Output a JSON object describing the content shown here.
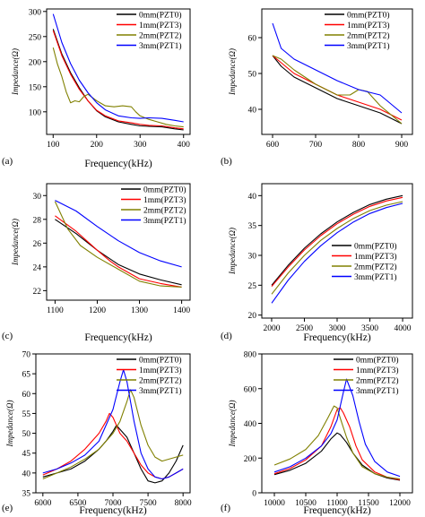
{
  "chart_data": [
    {
      "type": "line",
      "panel": "(a)",
      "xlabel": "Frequency(kHz)",
      "ylabel": "Impedance(Ω)",
      "xlim": [
        85,
        415
      ],
      "ylim": [
        55,
        305
      ],
      "xticks": [
        100,
        200,
        300,
        400
      ],
      "yticks": [
        50,
        100,
        150,
        200,
        250,
        300
      ],
      "series": [
        {
          "name": "0mm(PZT0)",
          "color": "#000000",
          "x": [
            100,
            120,
            140,
            160,
            180,
            200,
            220,
            250,
            280,
            300,
            320,
            350,
            380,
            400
          ],
          "y": [
            265,
            215,
            178,
            148,
            122,
            102,
            90,
            80,
            75,
            72,
            71,
            70,
            66,
            64
          ]
        },
        {
          "name": "1mm(PZT3)",
          "color": "#ff0000",
          "x": [
            100,
            120,
            140,
            160,
            180,
            200,
            220,
            250,
            280,
            300,
            320,
            350,
            380,
            400
          ],
          "y": [
            262,
            212,
            175,
            145,
            122,
            103,
            92,
            82,
            78,
            75,
            73,
            72,
            68,
            66
          ]
        },
        {
          "name": "2mm(PZT2)",
          "color": "#808000",
          "x": [
            100,
            110,
            120,
            130,
            140,
            150,
            160,
            170,
            180,
            200,
            220,
            240,
            260,
            280,
            290,
            300,
            320,
            340,
            360,
            380,
            400
          ],
          "y": [
            228,
            195,
            170,
            140,
            118,
            122,
            120,
            130,
            135,
            122,
            112,
            110,
            112,
            110,
            100,
            92,
            85,
            80,
            75,
            72,
            70
          ]
        },
        {
          "name": "3mm(PZT1)",
          "color": "#0000ff",
          "x": [
            100,
            120,
            140,
            160,
            180,
            200,
            220,
            250,
            280,
            300,
            320,
            350,
            380,
            400
          ],
          "y": [
            295,
            238,
            196,
            163,
            138,
            118,
            104,
            92,
            88,
            87,
            88,
            87,
            83,
            80
          ]
        }
      ]
    },
    {
      "type": "line",
      "panel": "(b)",
      "xlabel": "",
      "ylabel": "Impedance(Ω)",
      "xlim": [
        575,
        925
      ],
      "ylim": [
        33,
        68
      ],
      "xticks": [
        600,
        700,
        800,
        900
      ],
      "yticks": [
        30,
        40,
        50,
        60
      ],
      "series": [
        {
          "name": "0mm(PZT0)",
          "color": "#000000",
          "x": [
            600,
            620,
            650,
            700,
            750,
            800,
            850,
            900
          ],
          "y": [
            55,
            52,
            49,
            46,
            43,
            41,
            39,
            36
          ]
        },
        {
          "name": "1mm(PZT3)",
          "color": "#ff0000",
          "x": [
            600,
            620,
            650,
            700,
            750,
            800,
            850,
            900
          ],
          "y": [
            55,
            53,
            50,
            47,
            44,
            42,
            40,
            37
          ]
        },
        {
          "name": "2mm(PZT2)",
          "color": "#808000",
          "x": [
            600,
            620,
            650,
            700,
            750,
            780,
            800,
            820,
            850,
            880,
            900
          ],
          "y": [
            55,
            54,
            51,
            47,
            44,
            44,
            45.5,
            45,
            41,
            38,
            36
          ]
        },
        {
          "name": "3mm(PZT1)",
          "color": "#0000ff",
          "x": [
            600,
            620,
            650,
            700,
            750,
            800,
            850,
            880,
            900
          ],
          "y": [
            64,
            57,
            54,
            51,
            48,
            45.5,
            44,
            41,
            39
          ]
        }
      ]
    },
    {
      "type": "line",
      "panel": "(c)",
      "xlabel": "Frequency(kHz)",
      "ylabel": "Impedance(Ω)",
      "xlim": [
        1080,
        1420
      ],
      "ylim": [
        21.2,
        31
      ],
      "xticks": [
        1100,
        1200,
        1300,
        1400
      ],
      "yticks": [
        22,
        24,
        26,
        28,
        30
      ],
      "series": [
        {
          "name": "0mm(PZT0)",
          "color": "#000000",
          "x": [
            1100,
            1150,
            1200,
            1250,
            1300,
            1350,
            1400
          ],
          "y": [
            28.0,
            26.8,
            25.4,
            24.2,
            23.4,
            22.9,
            22.5
          ]
        },
        {
          "name": "1mm(PZT3)",
          "color": "#ff0000",
          "x": [
            1100,
            1150,
            1200,
            1230,
            1250,
            1300,
            1350,
            1400
          ],
          "y": [
            28.3,
            27.0,
            25.4,
            24.5,
            24.0,
            23.0,
            22.6,
            22.3
          ]
        },
        {
          "name": "2mm(PZT2)",
          "color": "#808000",
          "x": [
            1100,
            1130,
            1160,
            1200,
            1250,
            1300,
            1350,
            1400
          ],
          "y": [
            29.5,
            27.2,
            25.8,
            24.8,
            23.8,
            22.8,
            22.4,
            22.3
          ]
        },
        {
          "name": "3mm(PZT1)",
          "color": "#0000ff",
          "x": [
            1100,
            1150,
            1200,
            1250,
            1300,
            1350,
            1400
          ],
          "y": [
            29.6,
            28.7,
            27.4,
            26.2,
            25.2,
            24.5,
            24.0
          ]
        }
      ]
    },
    {
      "type": "line",
      "panel": "(d)",
      "xlabel": "Frequency(kHz)",
      "ylabel": "Impedance(Ω)",
      "xlim": [
        1850,
        4150
      ],
      "ylim": [
        19.5,
        42
      ],
      "xticks": [
        2000,
        2500,
        3000,
        3500,
        4000
      ],
      "yticks": [
        20,
        25,
        30,
        35,
        40
      ],
      "series": [
        {
          "name": "0mm(PZT0)",
          "color": "#000000",
          "x": [
            2000,
            2250,
            2500,
            2750,
            3000,
            3250,
            3500,
            3750,
            4000
          ],
          "y": [
            25,
            28.3,
            31.2,
            33.6,
            35.6,
            37.2,
            38.5,
            39.4,
            40.0
          ]
        },
        {
          "name": "1mm(PZT3)",
          "color": "#ff0000",
          "x": [
            2000,
            2250,
            2500,
            2750,
            3000,
            3250,
            3500,
            3750,
            4000
          ],
          "y": [
            24.8,
            28.0,
            30.9,
            33.3,
            35.3,
            36.9,
            38.2,
            39.1,
            39.7
          ]
        },
        {
          "name": "2mm(PZT2)",
          "color": "#808000",
          "x": [
            2000,
            2250,
            2500,
            2750,
            3000,
            3250,
            3500,
            3750,
            4000
          ],
          "y": [
            23.5,
            27.0,
            30.0,
            32.5,
            34.5,
            36.2,
            37.5,
            38.4,
            39.0
          ]
        },
        {
          "name": "3mm(PZT1)",
          "color": "#0000ff",
          "x": [
            2000,
            2250,
            2500,
            2750,
            3000,
            3250,
            3500,
            3750,
            4000
          ],
          "y": [
            22,
            25.8,
            29.0,
            31.6,
            33.8,
            35.6,
            37.0,
            38.0,
            38.7
          ]
        }
      ]
    },
    {
      "type": "line",
      "panel": "(e)",
      "xlabel": "Frequency(kHz)",
      "ylabel": "Impedance(Ω)",
      "xlim": [
        5900,
        8100
      ],
      "ylim": [
        35,
        70
      ],
      "xticks": [
        6000,
        6500,
        7000,
        7500,
        8000
      ],
      "yticks": [
        35,
        40,
        45,
        50,
        55,
        60,
        65,
        70
      ],
      "series": [
        {
          "name": "0mm(PZT0)",
          "color": "#000000",
          "x": [
            6000,
            6200,
            6400,
            6600,
            6800,
            6900,
            7000,
            7050,
            7100,
            7200,
            7300,
            7400,
            7500,
            7600,
            7700,
            7800,
            7900,
            8000
          ],
          "y": [
            39,
            40,
            41,
            43,
            46,
            48,
            50.5,
            52,
            51,
            49,
            45,
            41,
            38,
            37.5,
            38,
            40,
            43,
            47
          ]
        },
        {
          "name": "1mm(PZT3)",
          "color": "#ff0000",
          "x": [
            6000,
            6200,
            6400,
            6600,
            6800,
            6900,
            6950,
            7000,
            7050,
            7100,
            7200,
            7300,
            7400,
            7500,
            7600,
            7700,
            7800,
            7900,
            8000
          ],
          "y": [
            39.5,
            41,
            43,
            46,
            50,
            53,
            55,
            54,
            52,
            50,
            48,
            45,
            42,
            40,
            39,
            38.5,
            39,
            40,
            41
          ]
        },
        {
          "name": "2mm(PZT2)",
          "color": "#808000",
          "x": [
            6000,
            6200,
            6400,
            6600,
            6800,
            7000,
            7100,
            7200,
            7250,
            7300,
            7400,
            7500,
            7600,
            7700,
            7800,
            7900,
            8000
          ],
          "y": [
            38.5,
            40,
            41.5,
            43.5,
            46,
            50,
            53,
            58,
            61,
            59,
            52,
            47,
            44,
            43,
            43.5,
            44,
            44.5
          ]
        },
        {
          "name": "3mm(PZT1)",
          "color": "#0000ff",
          "x": [
            6000,
            6200,
            6400,
            6600,
            6800,
            7000,
            7100,
            7150,
            7200,
            7300,
            7400,
            7500,
            7600,
            7700,
            7800,
            7900,
            8000
          ],
          "y": [
            40,
            41,
            42.5,
            44.5,
            48,
            56,
            63,
            66,
            63,
            53,
            45,
            41,
            39,
            38.5,
            39,
            40,
            41
          ]
        }
      ]
    },
    {
      "type": "line",
      "panel": "(f)",
      "xlabel": "Frequency(kHz)",
      "ylabel": "Impedance(Ω)",
      "xlim": [
        9800,
        12200
      ],
      "ylim": [
        0,
        800
      ],
      "xticks": [
        10000,
        10500,
        11000,
        11500,
        12000
      ],
      "yticks": [
        0,
        200,
        400,
        600,
        800
      ],
      "series": [
        {
          "name": "0mm(PZT0)",
          "color": "#000000",
          "x": [
            10000,
            10250,
            10500,
            10750,
            10900,
            11000,
            11050,
            11150,
            11250,
            11400,
            11600,
            11800,
            12000
          ],
          "y": [
            105,
            130,
            170,
            240,
            310,
            345,
            335,
            290,
            230,
            160,
            110,
            85,
            72
          ]
        },
        {
          "name": "1mm(PZT3)",
          "color": "#ff0000",
          "x": [
            10000,
            10250,
            10500,
            10750,
            10900,
            11000,
            11050,
            11100,
            11200,
            11300,
            11400,
            11600,
            11800,
            12000
          ],
          "y": [
            110,
            140,
            190,
            270,
            380,
            480,
            490,
            460,
            380,
            270,
            190,
            120,
            90,
            75
          ]
        },
        {
          "name": "2mm(PZT2)",
          "color": "#808000",
          "x": [
            10000,
            10250,
            10500,
            10700,
            10850,
            10950,
            11000,
            11050,
            11150,
            11250,
            11400,
            11600,
            11800,
            12000
          ],
          "y": [
            160,
            195,
            250,
            330,
            430,
            500,
            490,
            430,
            320,
            230,
            150,
            110,
            90,
            80
          ]
        },
        {
          "name": "3mm(PZT1)",
          "color": "#0000ff",
          "x": [
            10000,
            10250,
            10500,
            10750,
            10900,
            11000,
            11050,
            11100,
            11150,
            11250,
            11350,
            11450,
            11600,
            11800,
            12000
          ],
          "y": [
            120,
            150,
            200,
            270,
            340,
            420,
            500,
            580,
            655,
            560,
            410,
            280,
            180,
            120,
            95
          ]
        }
      ]
    }
  ]
}
